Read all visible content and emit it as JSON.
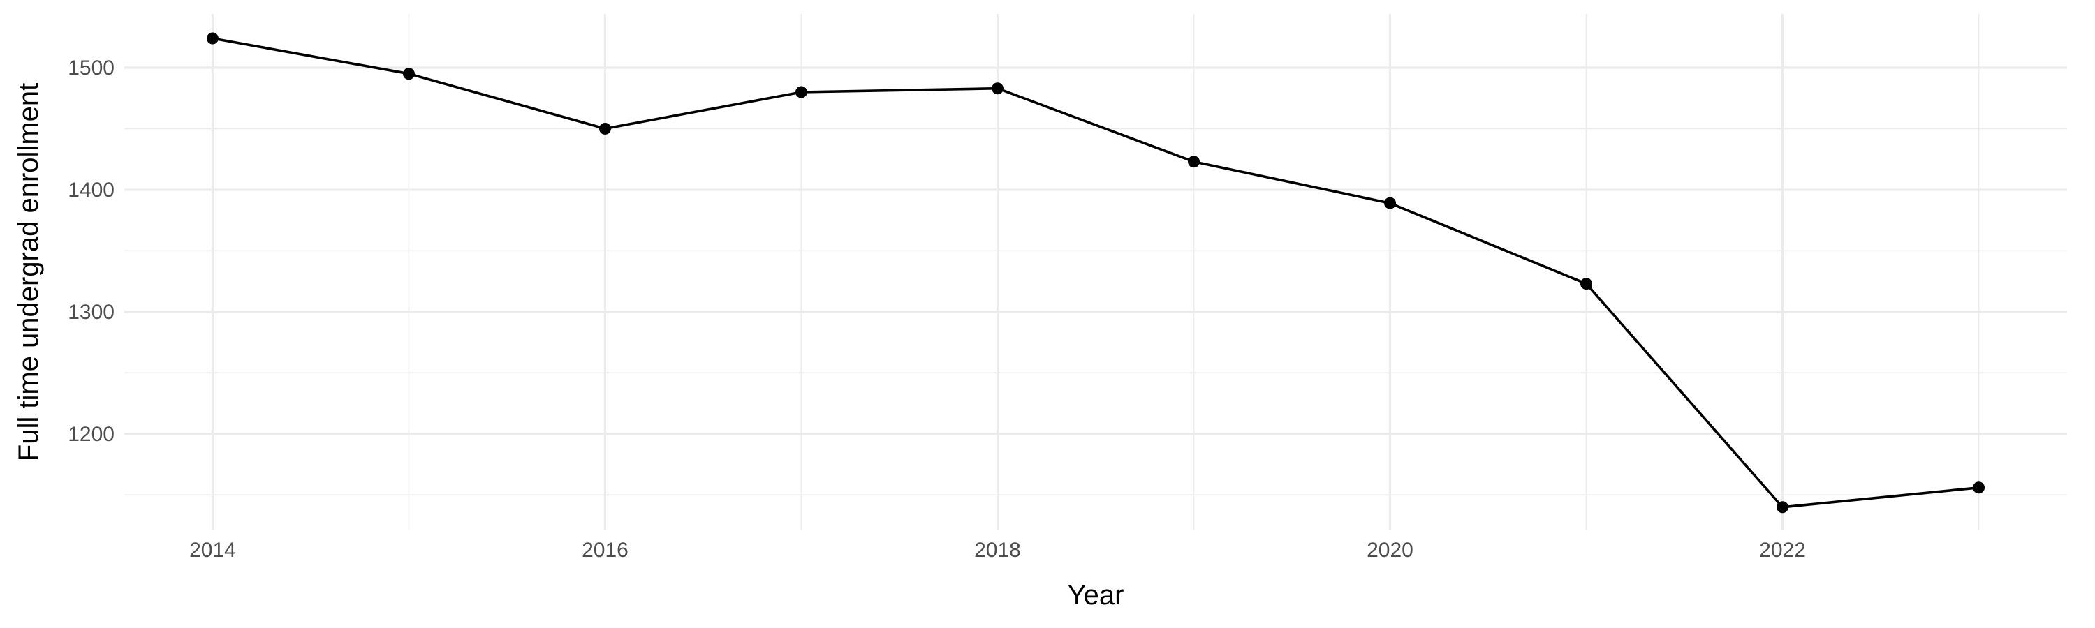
{
  "chart_data": {
    "type": "line",
    "title": "",
    "xlabel": "Year",
    "ylabel": "Full time undergrad enrollment",
    "xlim": [
      2013.55,
      2023.45
    ],
    "ylim": [
      1121,
      1544
    ],
    "x_ticks": [
      2014,
      2016,
      2018,
      2020,
      2022
    ],
    "x_minor_ticks": [
      2015,
      2017,
      2019,
      2021,
      2023
    ],
    "y_ticks": [
      1200,
      1300,
      1400,
      1500
    ],
    "y_minor_ticks": [
      1150,
      1250,
      1350,
      1450
    ],
    "grid": true,
    "legend": "none",
    "colors": {
      "line": "#000000",
      "grid": "#ebebeb",
      "tick_text": "#4d4d4d",
      "background": "#ffffff"
    },
    "series": [
      {
        "x": [
          2014,
          2015,
          2016,
          2017,
          2018,
          2019,
          2020,
          2021,
          2022,
          2023
        ],
        "values": [
          1524,
          1495,
          1450,
          1480,
          1483,
          1423,
          1389,
          1323,
          1140,
          1156
        ]
      }
    ]
  }
}
